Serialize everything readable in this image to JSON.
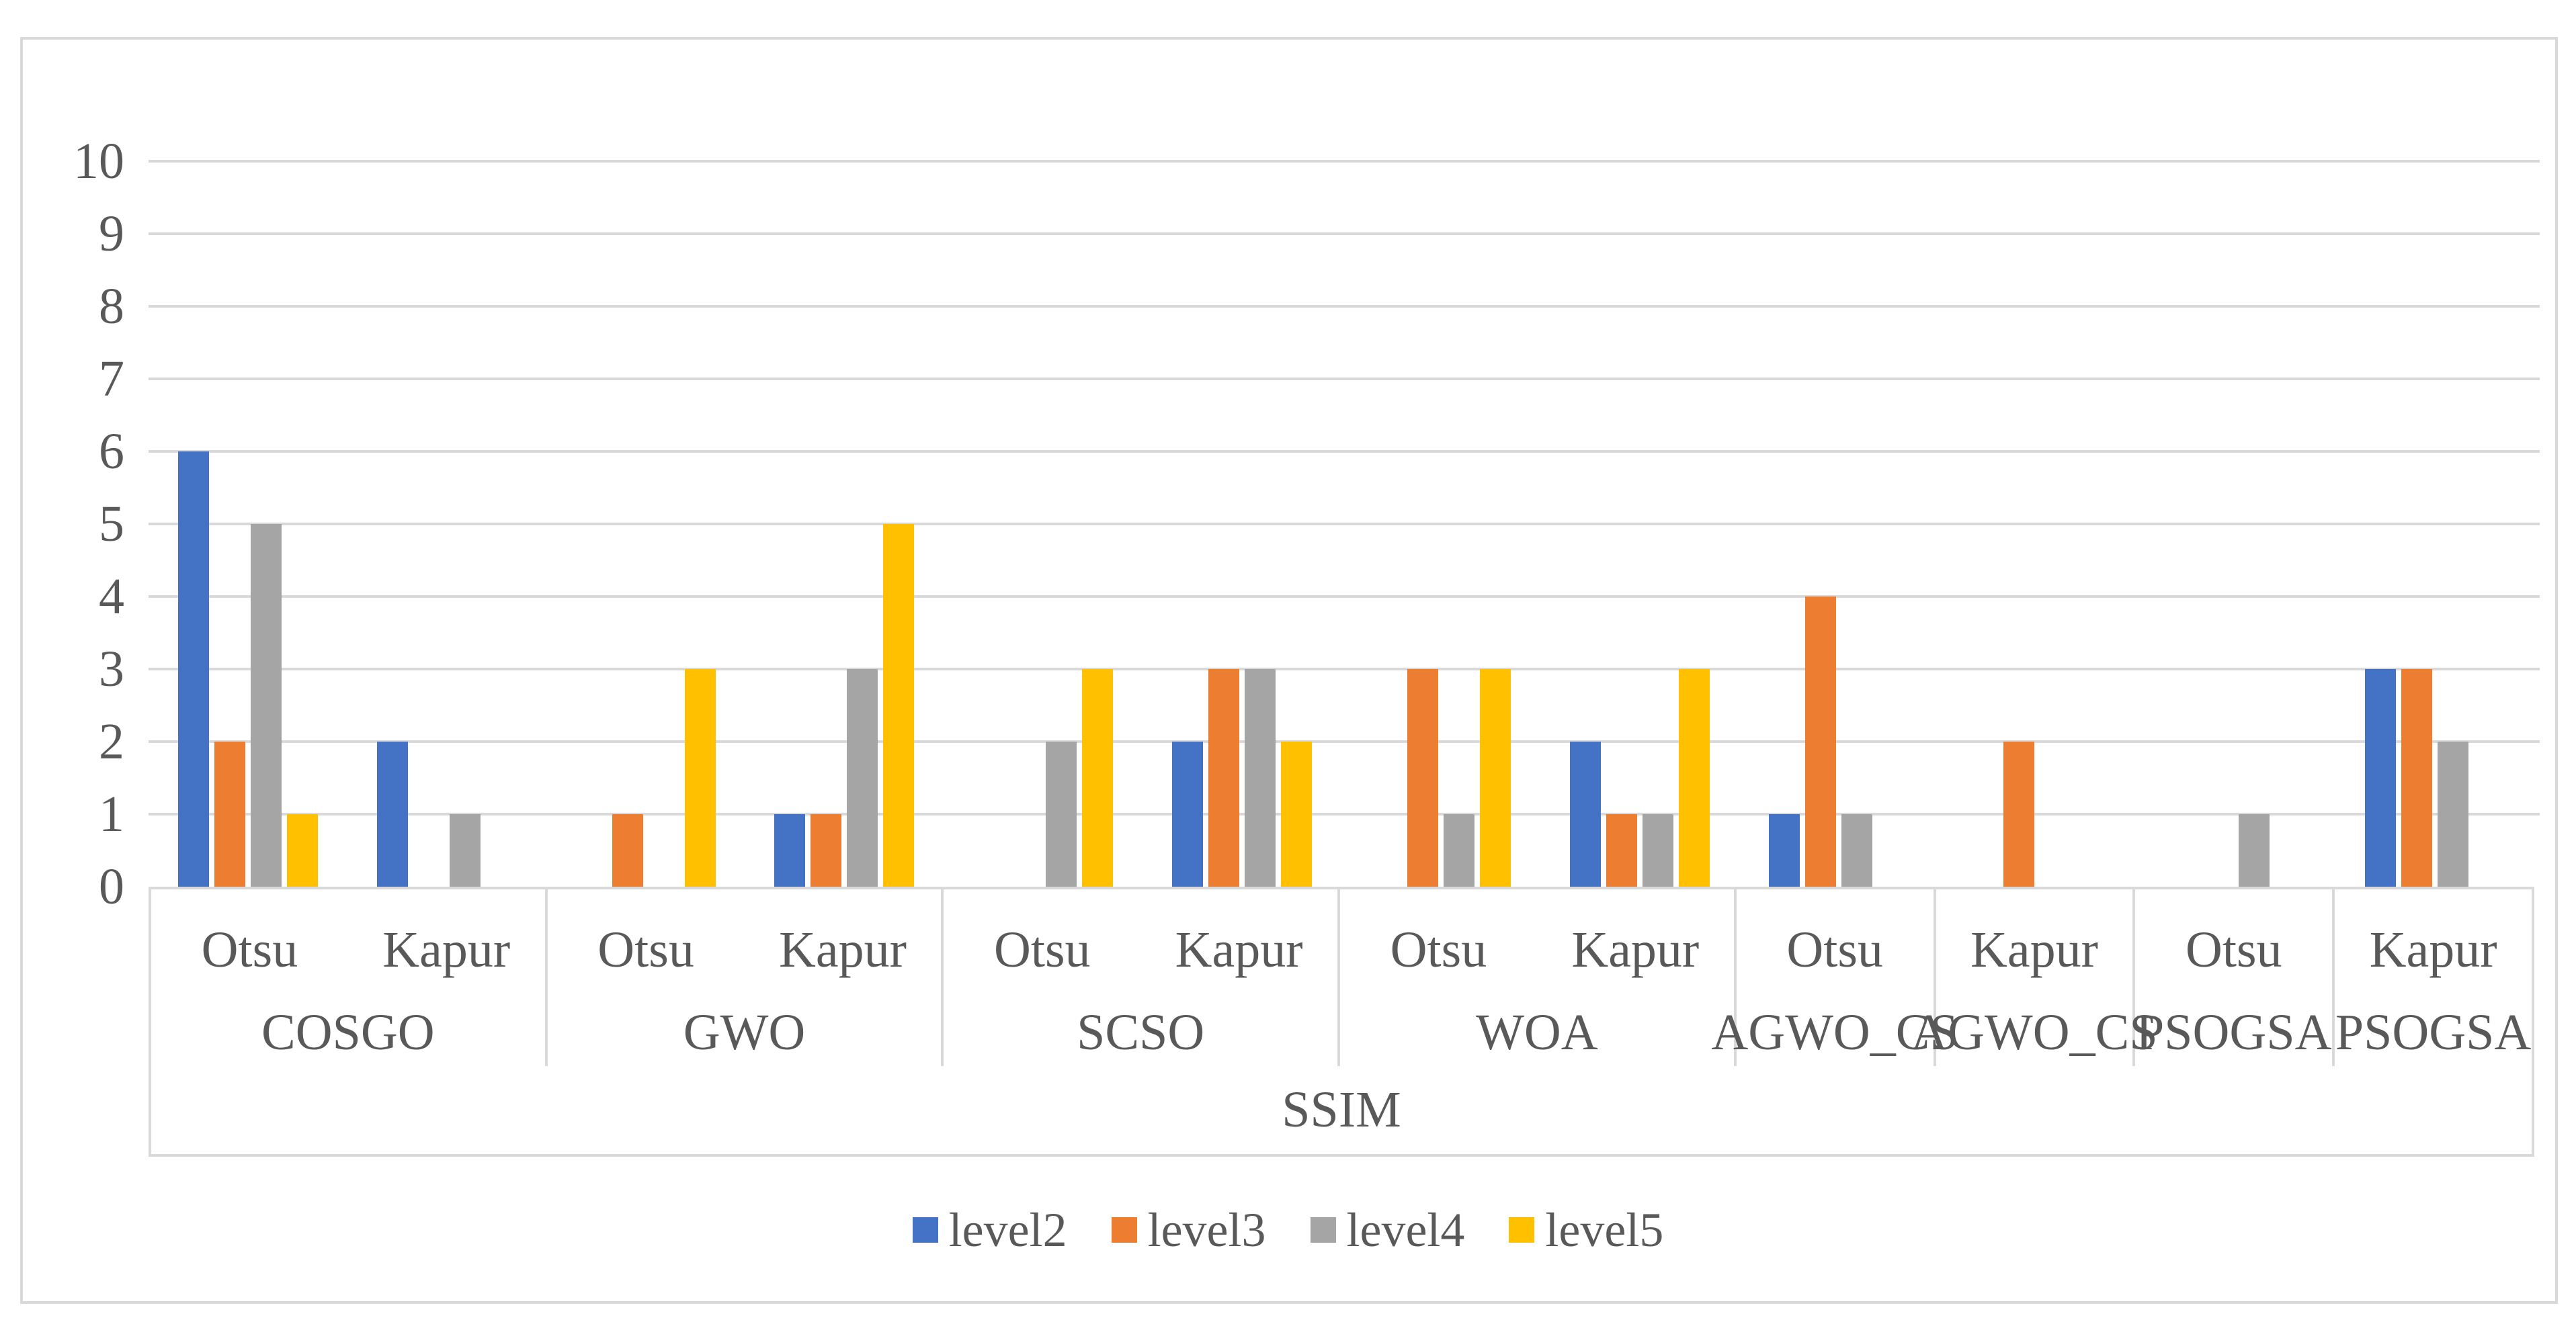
{
  "figure": {
    "background_color": "#FFFFFF",
    "border_color": "#D9D9D9",
    "text_color": "#595959"
  },
  "chart_data": {
    "type": "bar",
    "title": "",
    "xlabel": "",
    "ylabel": "",
    "ylim": [
      0,
      10
    ],
    "yticks": [
      0,
      1,
      2,
      3,
      4,
      5,
      6,
      7,
      8,
      9,
      10
    ],
    "grid": true,
    "gridline_color": "#D9D9D9",
    "legend_position": "bottom",
    "axis_level3_label": "SSIM",
    "groups": [
      {
        "label": "COSGO",
        "subs": [
          "Otsu",
          "Kapur"
        ]
      },
      {
        "label": "GWO",
        "subs": [
          "Otsu",
          "Kapur"
        ]
      },
      {
        "label": "SCSO",
        "subs": [
          "Otsu",
          "Kapur"
        ]
      },
      {
        "label": "WOA",
        "subs": [
          "Otsu",
          "Kapur"
        ]
      },
      {
        "label": "AGWO_CS",
        "subs": [
          "Otsu"
        ]
      },
      {
        "label": "AGWO_CS",
        "subs": [
          "Kapur"
        ]
      },
      {
        "label": "PSOGSA",
        "subs": [
          "Otsu"
        ]
      },
      {
        "label": "PSOGSA",
        "subs": [
          "Kapur"
        ]
      }
    ],
    "categories": [
      "COSGO-Otsu",
      "COSGO-Kapur",
      "GWO-Otsu",
      "GWO-Kapur",
      "SCSO-Otsu",
      "SCSO-Kapur",
      "WOA-Otsu",
      "WOA-Kapur",
      "AGWO_CS-Otsu",
      "AGWO_CS-Kapur",
      "PSOGSA-Otsu",
      "PSOGSA-Kapur"
    ],
    "series": [
      {
        "name": "level2",
        "color": "#4472C4",
        "values": [
          6,
          2,
          0,
          1,
          0,
          2,
          0,
          2,
          1,
          0,
          0,
          3
        ]
      },
      {
        "name": "level3",
        "color": "#ED7D31",
        "values": [
          2,
          0,
          1,
          1,
          0,
          3,
          3,
          1,
          4,
          2,
          0,
          3
        ]
      },
      {
        "name": "level4",
        "color": "#A5A5A5",
        "values": [
          5,
          1,
          0,
          3,
          2,
          3,
          1,
          1,
          1,
          0,
          1,
          2
        ]
      },
      {
        "name": "level5",
        "color": "#FFC000",
        "values": [
          1,
          0,
          3,
          5,
          3,
          2,
          3,
          3,
          0,
          0,
          0,
          0
        ]
      }
    ]
  },
  "legend": {
    "items": [
      {
        "label": "level2",
        "color": "#4472C4"
      },
      {
        "label": "level3",
        "color": "#ED7D31"
      },
      {
        "label": "level4",
        "color": "#A5A5A5"
      },
      {
        "label": "level5",
        "color": "#FFC000"
      }
    ]
  }
}
